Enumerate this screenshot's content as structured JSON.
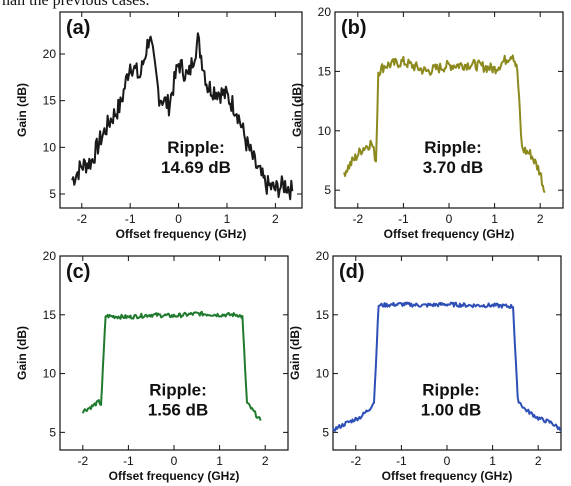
{
  "caption_fragment": "han the previous cases.",
  "chart_data": [
    {
      "type": "line",
      "panel_label": "(a)",
      "annotation": [
        "Ripple:",
        "14.69 dB"
      ],
      "xlabel": "Offset frequency (GHz)",
      "ylabel": "Gain (dB)",
      "xlim": [
        -2.45,
        2.55
      ],
      "ylim": [
        3.5,
        24.5
      ],
      "xticks": [
        -2,
        -1,
        0,
        1,
        2
      ],
      "yticks": [
        5,
        10,
        15,
        20
      ],
      "color": "#1a1a1a",
      "series": [
        {
          "x": [
            -2.2,
            -2.0,
            -1.8,
            -1.6,
            -1.4,
            -1.2,
            -1.0,
            -0.8,
            -0.6,
            -0.4,
            -0.2,
            0.0,
            0.2,
            0.4,
            0.6,
            0.8,
            1.0,
            1.2,
            1.4,
            1.6,
            1.8,
            2.0,
            2.2,
            2.35
          ],
          "y": [
            6.5,
            8.0,
            8.5,
            11.0,
            13.0,
            14.5,
            19.0,
            17.5,
            22.0,
            15.5,
            14.5,
            19.0,
            17.5,
            21.5,
            16.5,
            16.0,
            15.5,
            14.0,
            10.5,
            8.0,
            6.0,
            5.5,
            6.0,
            5.3
          ]
        }
      ]
    },
    {
      "type": "line",
      "panel_label": "(b)",
      "annotation": [
        "Ripple:",
        "3.70 dB"
      ],
      "xlabel": "Offset frequency (GHz)",
      "ylabel": "Gain (dB)",
      "xlim": [
        -2.5,
        2.5
      ],
      "ylim": [
        3.5,
        20.0
      ],
      "xticks": [
        -2,
        -1,
        0,
        1,
        2
      ],
      "yticks": [
        5,
        10,
        15,
        20
      ],
      "color": "#8c8a1e",
      "series": [
        {
          "x": [
            -2.3,
            -2.1,
            -1.9,
            -1.7,
            -1.6,
            -1.55,
            -1.4,
            -1.0,
            -0.5,
            0.0,
            0.5,
            1.0,
            1.4,
            1.5,
            1.6,
            1.8,
            2.0,
            2.1
          ],
          "y": [
            6.5,
            7.5,
            8.5,
            9.0,
            7.5,
            15.0,
            15.5,
            15.8,
            15.0,
            15.5,
            15.6,
            15.2,
            16.5,
            15.0,
            8.5,
            8.0,
            6.5,
            4.8
          ]
        }
      ]
    },
    {
      "type": "line",
      "panel_label": "(c)",
      "annotation": [
        "Ripple:",
        "1.56 dB"
      ],
      "xlabel": "Offset frequency (GHz)",
      "ylabel": "Gain (dB)",
      "xlim": [
        -2.5,
        2.5
      ],
      "ylim": [
        3.5,
        20.0
      ],
      "xticks": [
        -2,
        -1,
        0,
        1,
        2
      ],
      "yticks": [
        5,
        10,
        15,
        20
      ],
      "color": "#1f7a2e",
      "series": [
        {
          "x": [
            -2.0,
            -1.8,
            -1.65,
            -1.6,
            -1.5,
            -1.0,
            -0.5,
            0.0,
            0.5,
            1.0,
            1.4,
            1.5,
            1.6,
            1.8,
            1.9
          ],
          "y": [
            6.8,
            7.2,
            7.6,
            7.4,
            14.9,
            14.8,
            15.0,
            14.9,
            15.1,
            15.0,
            15.0,
            14.8,
            7.5,
            6.5,
            6.0
          ]
        }
      ]
    },
    {
      "type": "line",
      "panel_label": "(d)",
      "annotation": [
        "Ripple:",
        "1.00 dB"
      ],
      "xlabel": "Offset frequency (GHz)",
      "ylabel": "Gain (dB)",
      "xlim": [
        -2.5,
        2.5
      ],
      "ylim": [
        3.5,
        20.0
      ],
      "xticks": [
        -2,
        -1,
        0,
        1,
        2
      ],
      "yticks": [
        5,
        10,
        15,
        20
      ],
      "color": "#2e4fb5",
      "series": [
        {
          "x": [
            -2.5,
            -2.2,
            -1.9,
            -1.7,
            -1.6,
            -1.5,
            -1.0,
            -0.5,
            0.0,
            0.5,
            1.0,
            1.45,
            1.55,
            1.7,
            2.0,
            2.3,
            2.5
          ],
          "y": [
            5.2,
            5.8,
            6.3,
            7.0,
            7.6,
            15.8,
            15.9,
            15.8,
            15.9,
            15.8,
            15.8,
            15.7,
            7.8,
            7.0,
            6.2,
            5.8,
            5.2
          ]
        }
      ]
    }
  ]
}
